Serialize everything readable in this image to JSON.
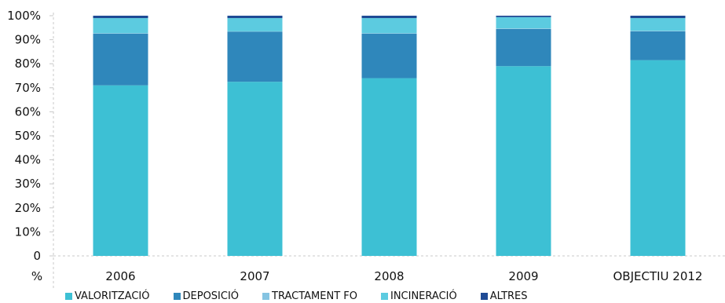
{
  "chart_data": {
    "type": "bar",
    "stacked": true,
    "categories": [
      "2006",
      "2007",
      "2008",
      "2009",
      "OBJECTIU 2012"
    ],
    "series": [
      {
        "name": "VALORITZACIÓ",
        "color": "#3dc0d4",
        "values": [
          71,
          72.5,
          74,
          79,
          81.5
        ]
      },
      {
        "name": "DEPOSICIÓ",
        "color": "#2f87bb",
        "values": [
          21.5,
          20.8,
          18.5,
          15.5,
          12
        ]
      },
      {
        "name": "TRACTAMENT FO",
        "color": "#85c4e2",
        "values": [
          0.2,
          0.2,
          0.2,
          0.2,
          0.2
        ]
      },
      {
        "name": "INCINERACIÓ",
        "color": "#5ccbe0",
        "values": [
          6.3,
          5.5,
          6.3,
          4.7,
          5.3
        ]
      },
      {
        "name": "ALTRES",
        "color": "#1f4b95",
        "values": [
          1.0,
          1.0,
          1.0,
          0.6,
          1.0
        ]
      }
    ],
    "y_ticks": [
      "0",
      "10%",
      "20%",
      "30%",
      "40%",
      "50%",
      "60%",
      "70%",
      "80%",
      "90%",
      "100%"
    ],
    "ylim": [
      0,
      100
    ],
    "yunit": "%",
    "legend": "bottom",
    "grid": false
  }
}
